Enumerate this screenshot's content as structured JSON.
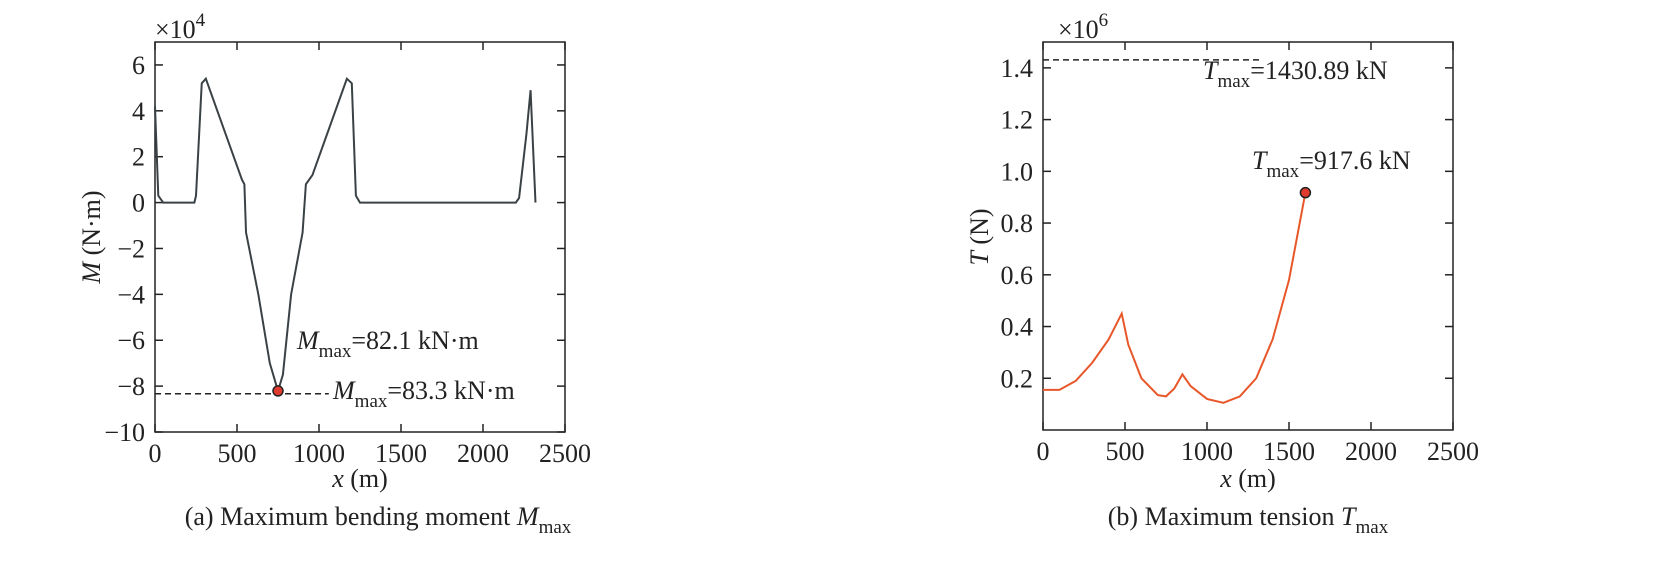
{
  "chart_data": [
    {
      "type": "line",
      "multiplier": {
        "parts": [
          {
            "t": "×10"
          },
          {
            "t": "4",
            "style": "sup"
          }
        ]
      },
      "ylabel": {
        "parts": [
          {
            "t": "M",
            "style": "italic"
          },
          {
            "t": " (N·m)"
          }
        ]
      },
      "xlabel": {
        "parts": [
          {
            "t": "x",
            "style": "italic"
          },
          {
            "t": " (m)"
          }
        ]
      },
      "caption": {
        "parts": [
          {
            "t": "(a) Maximum bending moment "
          },
          {
            "t": "M",
            "style": "italic"
          },
          {
            "t": "max",
            "style": "sub"
          }
        ]
      },
      "xlim": [
        0,
        2500
      ],
      "ylim": [
        -10,
        7
      ],
      "xticks": [
        0,
        500,
        1000,
        1500,
        2000,
        2500
      ],
      "yticks": [
        {
          "value": -10,
          "label": "−10"
        },
        {
          "value": -8,
          "label": "−8"
        },
        {
          "value": -6,
          "label": "−6"
        },
        {
          "value": -4,
          "label": "−4"
        },
        {
          "value": -2,
          "label": "−2"
        },
        0,
        2,
        4,
        6
      ],
      "color": "#3a4245",
      "x": [
        0,
        20,
        50,
        240,
        250,
        285,
        310,
        530,
        545,
        555,
        630,
        700,
        750,
        780,
        830,
        900,
        920,
        960,
        1050,
        1150,
        1170,
        1200,
        1225,
        1250,
        2200,
        2220,
        2265,
        2290,
        2320
      ],
      "values": [
        4.2,
        0.3,
        0,
        0,
        0.3,
        5.2,
        5.4,
        1.0,
        0.8,
        -1.3,
        -4,
        -7,
        -8.21,
        -7.5,
        -4,
        -1.3,
        0.8,
        1.2,
        3,
        5,
        5.4,
        5.2,
        0.3,
        0,
        0,
        0.2,
        3,
        4.9,
        0
      ],
      "peak": {
        "x": 750,
        "y": -8.21,
        "color": "#e03a2e"
      },
      "ref_line": {
        "y": -8.33,
        "x0": 0,
        "x1": 1060
      },
      "annotations": [
        {
          "parts": [
            {
              "t": "M",
              "style": "italic"
            },
            {
              "t": "max",
              "style": "sub"
            },
            {
              "t": "=82.1 kN·m"
            }
          ]
        },
        {
          "parts": [
            {
              "t": "M",
              "style": "italic"
            },
            {
              "t": "max",
              "style": "sub"
            },
            {
              "t": "=83.3 kN·m"
            }
          ]
        }
      ]
    },
    {
      "type": "line",
      "multiplier": {
        "parts": [
          {
            "t": "×10"
          },
          {
            "t": "6",
            "style": "sup"
          }
        ]
      },
      "ylabel": {
        "parts": [
          {
            "t": "T",
            "style": "italic"
          },
          {
            "t": " (N)"
          }
        ]
      },
      "xlabel": {
        "parts": [
          {
            "t": "x",
            "style": "italic"
          },
          {
            "t": " (m)"
          }
        ]
      },
      "caption": {
        "parts": [
          {
            "t": "(b) Maximum tension "
          },
          {
            "t": "T",
            "style": "italic"
          },
          {
            "t": "max",
            "style": "sub"
          }
        ]
      },
      "xlim": [
        0,
        2500
      ],
      "ylim": [
        0,
        1.5
      ],
      "xticks": [
        0,
        500,
        1000,
        1500,
        2000,
        2500
      ],
      "yticks": [
        0.2,
        0.4,
        0.6,
        0.8,
        {
          "value": 1,
          "label": "1.0"
        },
        1.2,
        1.4
      ],
      "color": "#e8572a",
      "x": [
        0,
        100,
        200,
        300,
        400,
        480,
        520,
        600,
        700,
        750,
        800,
        850,
        900,
        1000,
        1100,
        1200,
        1300,
        1400,
        1500,
        1600
      ],
      "values": [
        0.155,
        0.155,
        0.19,
        0.26,
        0.35,
        0.45,
        0.33,
        0.2,
        0.135,
        0.13,
        0.16,
        0.215,
        0.17,
        0.12,
        0.105,
        0.13,
        0.2,
        0.35,
        0.58,
        0.9176
      ],
      "peak": {
        "x": 1600,
        "y": 0.9176,
        "color": "#e03a2e"
      },
      "ref_line": {
        "y": 1.43089,
        "x0": 0,
        "x1": 1330
      },
      "annotations": [
        {
          "parts": [
            {
              "t": "T",
              "style": "italic"
            },
            {
              "t": "max",
              "style": "sub"
            },
            {
              "t": "=1430.89 kN"
            }
          ]
        },
        {
          "parts": [
            {
              "t": "T",
              "style": "italic"
            },
            {
              "t": "max",
              "style": "sub"
            },
            {
              "t": "=917.6 kN"
            }
          ]
        }
      ]
    }
  ]
}
